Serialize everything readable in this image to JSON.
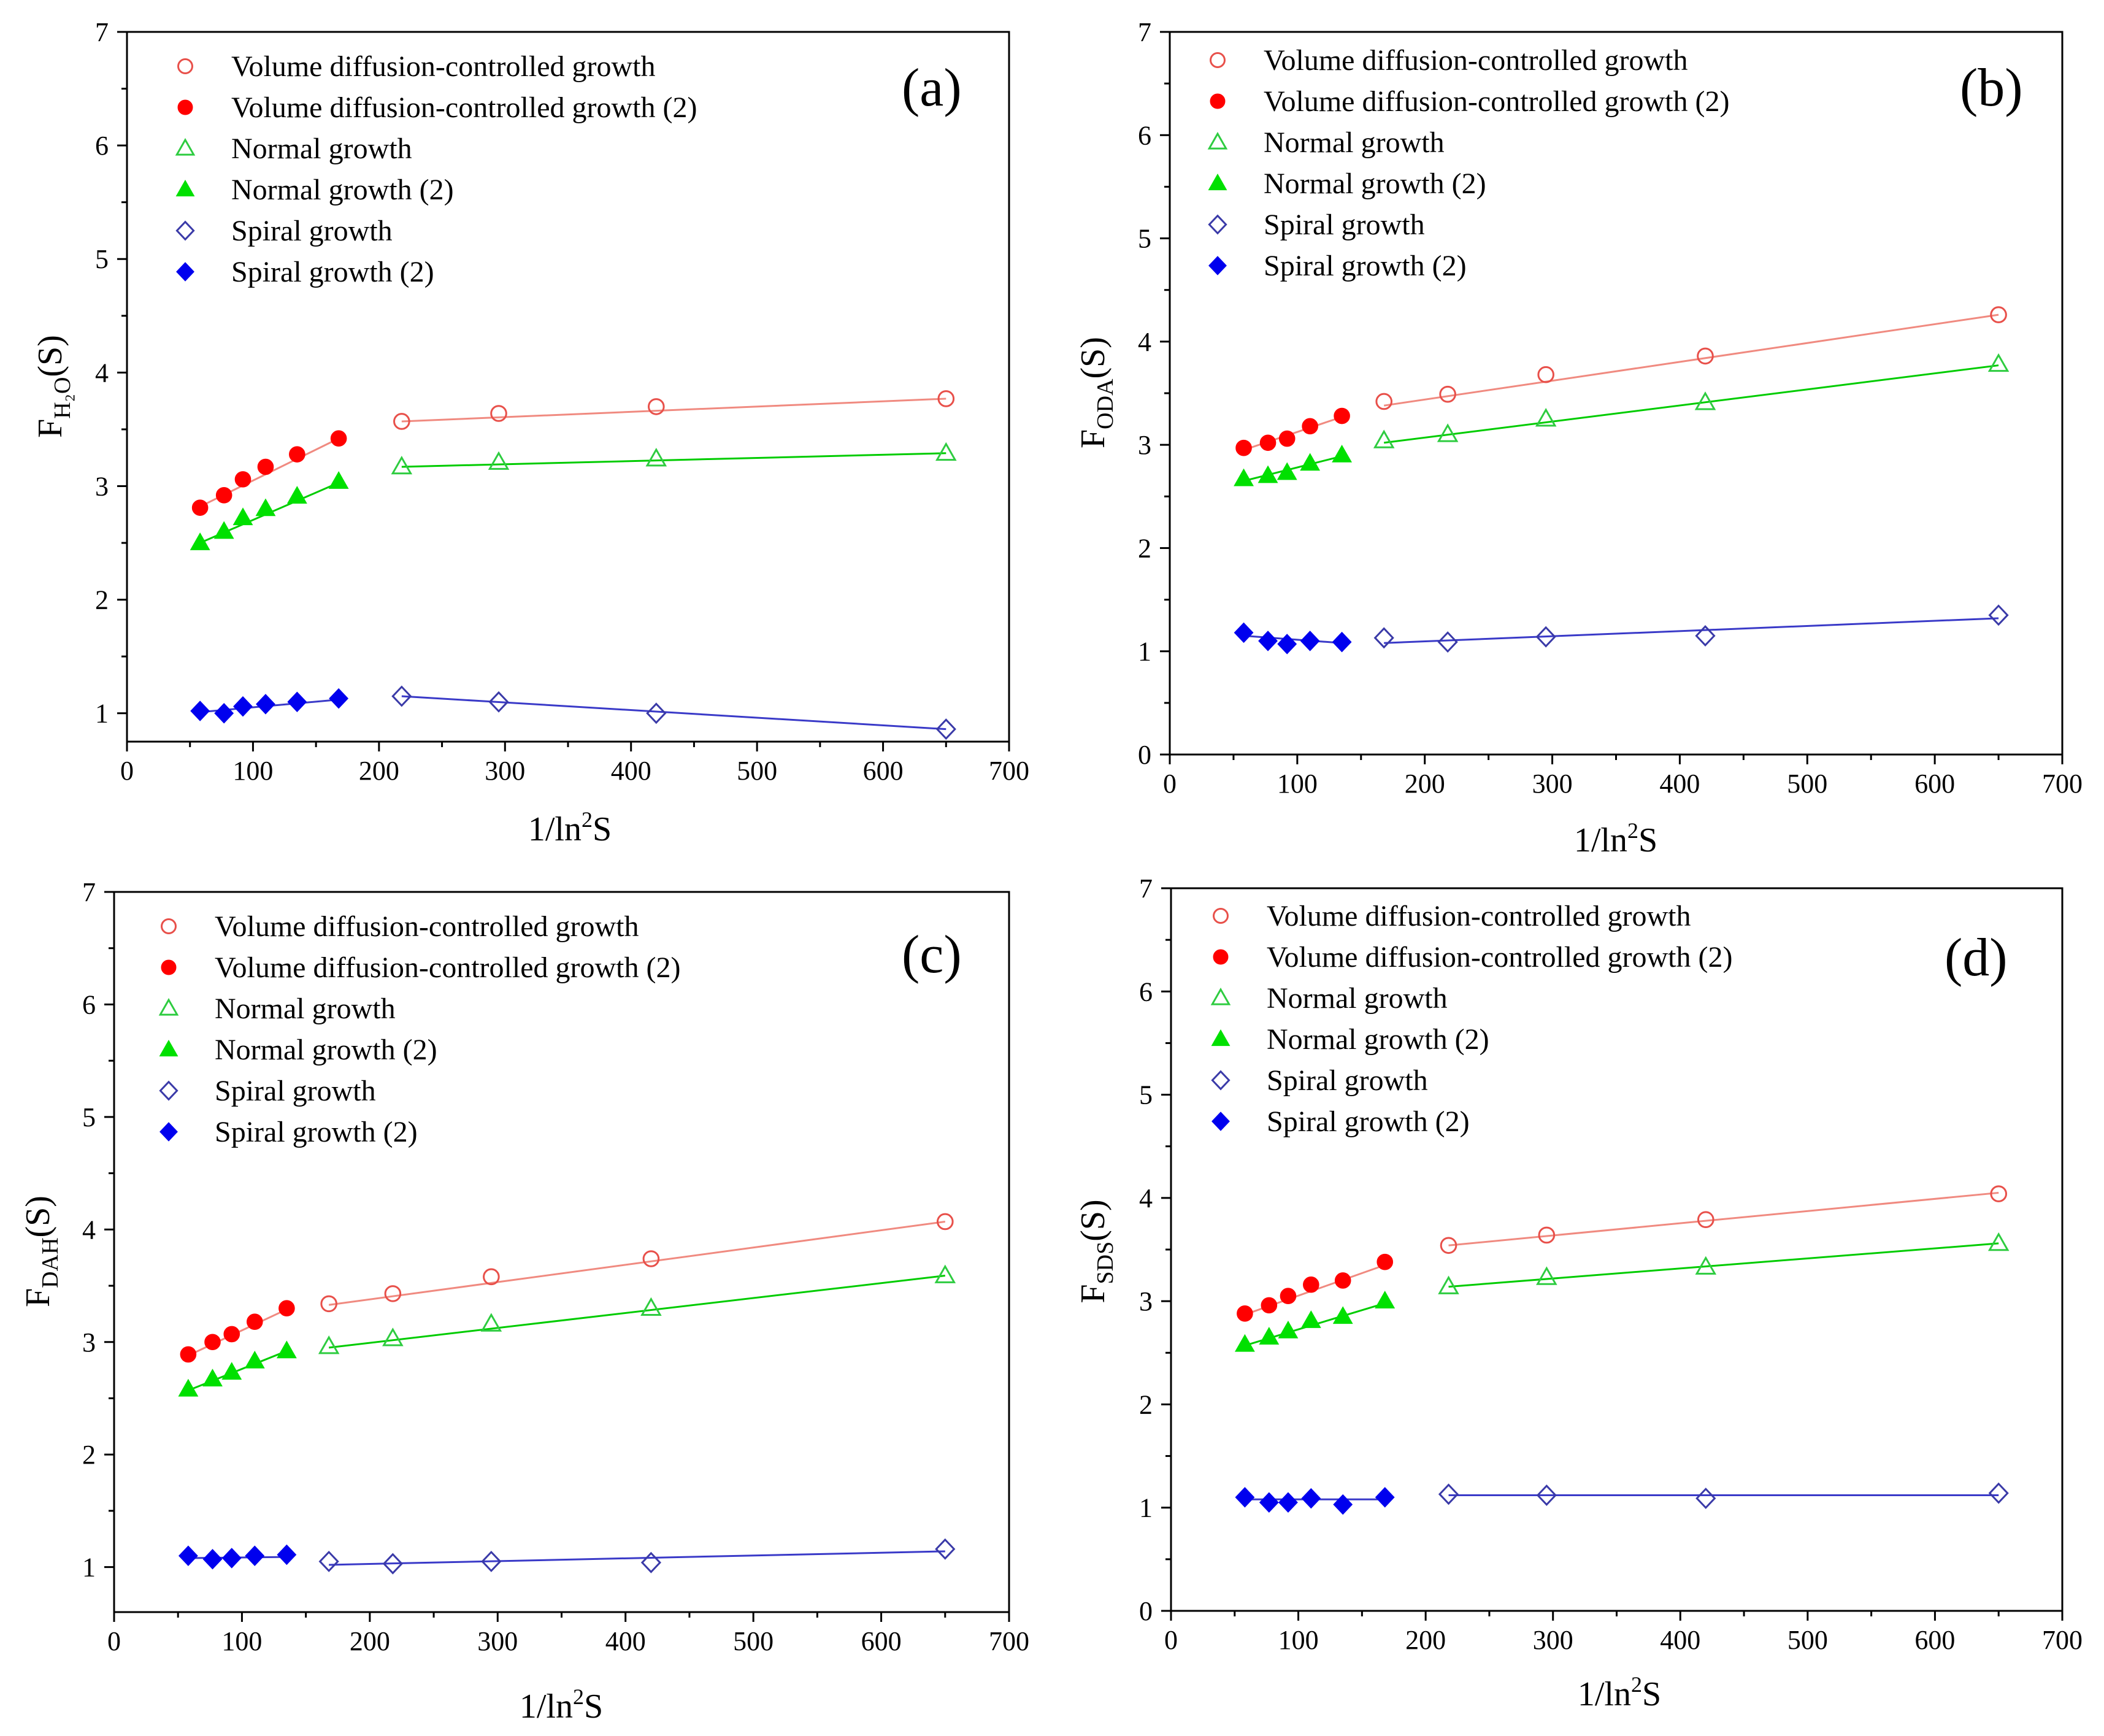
{
  "figure": {
    "xlabel": "1/ln²S",
    "legend_labels": [
      "Volume diffusion-controlled growth",
      "Volume diffusion-controlled growth (2)",
      "Normal growth",
      "Normal growth (2)",
      "Spiral growth",
      "Spiral growth (2)"
    ],
    "series_styles": [
      {
        "name": "Volume diffusion-controlled growth",
        "marker": "circle",
        "filled": false,
        "color": "#e8504a",
        "line_color": "#f08a80"
      },
      {
        "name": "Volume diffusion-controlled growth (2)",
        "marker": "circle",
        "filled": true,
        "color": "#ff0000",
        "line_color": "#f08a80"
      },
      {
        "name": "Normal growth",
        "marker": "triangle",
        "filled": false,
        "color": "#2ecc40",
        "line_color": "#00cc00"
      },
      {
        "name": "Normal growth (2)",
        "marker": "triangle",
        "filled": true,
        "color": "#00e000",
        "line_color": "#00cc00"
      },
      {
        "name": "Spiral growth",
        "marker": "diamond",
        "filled": false,
        "color": "#3a3aa8",
        "line_color": "#3a3ac8"
      },
      {
        "name": "Spiral growth (2)",
        "marker": "diamond",
        "filled": true,
        "color": "#0000ee",
        "line_color": "#3a3ac8"
      }
    ]
  },
  "chart_data": [
    {
      "panel": "(a)",
      "type": "scatter",
      "ylabel_main": "F",
      "ylabel_sub": "H₂O",
      "ylabel_tail": "(S)",
      "xlabel": "1/ln²S",
      "xlim": [
        0,
        700
      ],
      "ylim": [
        0.75,
        7
      ],
      "xticks": [
        0,
        100,
        200,
        300,
        400,
        500,
        600,
        700
      ],
      "yticks": [
        1,
        2,
        3,
        4,
        5,
        6,
        7
      ],
      "series": [
        {
          "name": "Volume diffusion-controlled growth",
          "x": [
            218,
            295,
            420,
            650
          ],
          "y": [
            3.57,
            3.64,
            3.7,
            3.77
          ],
          "fit": [
            [
              218,
              3.57
            ],
            [
              650,
              3.77
            ]
          ]
        },
        {
          "name": "Volume diffusion-controlled growth (2)",
          "x": [
            58,
            77,
            92,
            110,
            135,
            168
          ],
          "y": [
            2.81,
            2.92,
            3.06,
            3.17,
            3.28,
            3.42
          ],
          "fit": [
            [
              58,
              2.82
            ],
            [
              168,
              3.42
            ]
          ]
        },
        {
          "name": "Normal growth",
          "x": [
            218,
            295,
            420,
            650
          ],
          "y": [
            3.17,
            3.21,
            3.24,
            3.29
          ],
          "fit": [
            [
              218,
              3.17
            ],
            [
              650,
              3.29
            ]
          ]
        },
        {
          "name": "Normal growth (2)",
          "x": [
            58,
            77,
            92,
            110,
            135,
            168
          ],
          "y": [
            2.5,
            2.6,
            2.72,
            2.8,
            2.91,
            3.04
          ],
          "fit": [
            [
              58,
              2.5
            ],
            [
              168,
              3.03
            ]
          ]
        },
        {
          "name": "Spiral growth",
          "x": [
            218,
            295,
            420,
            650
          ],
          "y": [
            1.15,
            1.1,
            1.0,
            0.86
          ],
          "fit": [
            [
              218,
              1.15
            ],
            [
              650,
              0.86
            ]
          ]
        },
        {
          "name": "Spiral growth (2)",
          "x": [
            58,
            77,
            92,
            110,
            135,
            168
          ],
          "y": [
            1.02,
            1.0,
            1.06,
            1.08,
            1.1,
            1.13
          ],
          "fit": [
            [
              58,
              1.01
            ],
            [
              168,
              1.12
            ]
          ]
        }
      ]
    },
    {
      "panel": "(b)",
      "type": "scatter",
      "ylabel_main": "F",
      "ylabel_sub": "ODA",
      "ylabel_tail": "(S)",
      "xlabel": "1/ln²S",
      "xlim": [
        0,
        700
      ],
      "ylim": [
        0,
        7
      ],
      "xticks": [
        0,
        100,
        200,
        300,
        400,
        500,
        600,
        700
      ],
      "yticks": [
        0,
        1,
        2,
        3,
        4,
        5,
        6,
        7
      ],
      "series": [
        {
          "name": "Volume diffusion-controlled growth",
          "x": [
            168,
            218,
            295,
            420,
            650
          ],
          "y": [
            3.42,
            3.49,
            3.68,
            3.86,
            4.26
          ],
          "fit": [
            [
              168,
              3.38
            ],
            [
              650,
              4.26
            ]
          ]
        },
        {
          "name": "Volume diffusion-controlled growth (2)",
          "x": [
            58,
            77,
            92,
            110,
            135
          ],
          "y": [
            2.97,
            3.02,
            3.06,
            3.18,
            3.28
          ],
          "fit": [
            [
              58,
              2.95
            ],
            [
              135,
              3.27
            ]
          ]
        },
        {
          "name": "Normal growth",
          "x": [
            168,
            218,
            295,
            420,
            650
          ],
          "y": [
            3.04,
            3.1,
            3.25,
            3.41,
            3.78
          ],
          "fit": [
            [
              168,
              3.02
            ],
            [
              650,
              3.77
            ]
          ]
        },
        {
          "name": "Normal growth (2)",
          "x": [
            58,
            77,
            92,
            110,
            135
          ],
          "y": [
            2.67,
            2.7,
            2.73,
            2.82,
            2.9
          ],
          "fit": [
            [
              58,
              2.65
            ],
            [
              135,
              2.89
            ]
          ]
        },
        {
          "name": "Spiral growth",
          "x": [
            168,
            218,
            295,
            420,
            650
          ],
          "y": [
            1.13,
            1.09,
            1.14,
            1.15,
            1.35
          ],
          "fit": [
            [
              168,
              1.08
            ],
            [
              650,
              1.32
            ]
          ]
        },
        {
          "name": "Spiral growth (2)",
          "x": [
            58,
            77,
            92,
            110,
            135
          ],
          "y": [
            1.18,
            1.1,
            1.07,
            1.1,
            1.09
          ],
          "fit": [
            [
              58,
              1.15
            ],
            [
              135,
              1.08
            ]
          ]
        }
      ]
    },
    {
      "panel": "(c)",
      "type": "scatter",
      "ylabel_main": "F",
      "ylabel_sub": "DAH",
      "ylabel_tail": "(S)",
      "xlabel": "1/ln²S",
      "xlim": [
        0,
        700
      ],
      "ylim": [
        0.6,
        7
      ],
      "xticks": [
        0,
        100,
        200,
        300,
        400,
        500,
        600,
        700
      ],
      "yticks": [
        1,
        2,
        3,
        4,
        5,
        6,
        7
      ],
      "series": [
        {
          "name": "Volume diffusion-controlled growth",
          "x": [
            168,
            218,
            295,
            420,
            650
          ],
          "y": [
            3.34,
            3.43,
            3.58,
            3.74,
            4.07
          ],
          "fit": [
            [
              168,
              3.33
            ],
            [
              650,
              4.07
            ]
          ]
        },
        {
          "name": "Volume diffusion-controlled growth (2)",
          "x": [
            58,
            77,
            92,
            110,
            135
          ],
          "y": [
            2.89,
            3.0,
            3.07,
            3.18,
            3.3
          ],
          "fit": [
            [
              58,
              2.88
            ],
            [
              135,
              3.29
            ]
          ]
        },
        {
          "name": "Normal growth",
          "x": [
            168,
            218,
            295,
            420,
            650
          ],
          "y": [
            2.96,
            3.03,
            3.16,
            3.3,
            3.59
          ],
          "fit": [
            [
              168,
              2.95
            ],
            [
              650,
              3.59
            ]
          ]
        },
        {
          "name": "Normal growth (2)",
          "x": [
            58,
            77,
            92,
            110,
            135
          ],
          "y": [
            2.58,
            2.67,
            2.73,
            2.83,
            2.92
          ],
          "fit": [
            [
              58,
              2.57
            ],
            [
              135,
              2.92
            ]
          ]
        },
        {
          "name": "Spiral growth",
          "x": [
            168,
            218,
            295,
            420,
            650
          ],
          "y": [
            1.05,
            1.03,
            1.05,
            1.04,
            1.16
          ],
          "fit": [
            [
              168,
              1.02
            ],
            [
              650,
              1.14
            ]
          ]
        },
        {
          "name": "Spiral growth (2)",
          "x": [
            58,
            77,
            92,
            110,
            135
          ],
          "y": [
            1.1,
            1.07,
            1.08,
            1.1,
            1.11
          ],
          "fit": [
            [
              58,
              1.08
            ],
            [
              135,
              1.09
            ]
          ]
        }
      ]
    },
    {
      "panel": "(d)",
      "type": "scatter",
      "ylabel_main": "F",
      "ylabel_sub": "SDS",
      "ylabel_tail": "(S)",
      "xlabel": "1/ln²S",
      "xlim": [
        0,
        700
      ],
      "ylim": [
        0,
        7
      ],
      "xticks": [
        0,
        100,
        200,
        300,
        400,
        500,
        600,
        700
      ],
      "yticks": [
        0,
        1,
        2,
        3,
        4,
        5,
        6,
        7
      ],
      "series": [
        {
          "name": "Volume diffusion-controlled growth",
          "x": [
            218,
            295,
            420,
            650
          ],
          "y": [
            3.54,
            3.64,
            3.79,
            4.04
          ],
          "fit": [
            [
              218,
              3.54
            ],
            [
              650,
              4.05
            ]
          ]
        },
        {
          "name": "Volume diffusion-controlled growth (2)",
          "x": [
            58,
            77,
            92,
            110,
            135,
            168
          ],
          "y": [
            2.88,
            2.96,
            3.05,
            3.16,
            3.2,
            3.38
          ],
          "fit": [
            [
              58,
              2.87
            ],
            [
              168,
              3.35
            ]
          ]
        },
        {
          "name": "Normal growth",
          "x": [
            218,
            295,
            420,
            650
          ],
          "y": [
            3.14,
            3.23,
            3.33,
            3.56
          ],
          "fit": [
            [
              218,
              3.14
            ],
            [
              650,
              3.56
            ]
          ]
        },
        {
          "name": "Normal growth (2)",
          "x": [
            58,
            77,
            92,
            110,
            135,
            168
          ],
          "y": [
            2.58,
            2.65,
            2.71,
            2.81,
            2.85,
            3.0
          ],
          "fit": [
            [
              58,
              2.57
            ],
            [
              168,
              2.98
            ]
          ]
        },
        {
          "name": "Spiral growth",
          "x": [
            218,
            295,
            420,
            650
          ],
          "y": [
            1.13,
            1.12,
            1.09,
            1.14
          ],
          "fit": [
            [
              218,
              1.12
            ],
            [
              650,
              1.12
            ]
          ]
        },
        {
          "name": "Spiral growth (2)",
          "x": [
            58,
            77,
            92,
            110,
            135,
            168
          ],
          "y": [
            1.1,
            1.05,
            1.05,
            1.09,
            1.03,
            1.1
          ],
          "fit": [
            [
              58,
              1.08
            ],
            [
              168,
              1.08
            ]
          ]
        }
      ]
    }
  ]
}
